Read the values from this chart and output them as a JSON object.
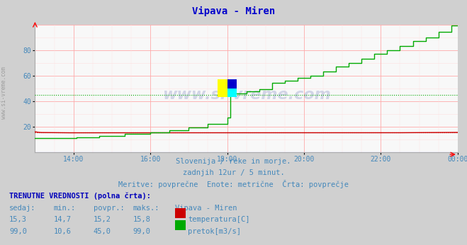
{
  "title": "Vipava - Miren",
  "title_color": "#0000cc",
  "bg_color": "#d0d0d0",
  "plot_bg_color": "#f8f8f8",
  "grid_color_major": "#ffaaaa",
  "grid_color_minor": "#ffe0e0",
  "tick_color": "#4488bb",
  "x_tick_positions": [
    12,
    36,
    60,
    84,
    108,
    132
  ],
  "x_tick_labels": [
    "14:00",
    "16:00",
    "18:00",
    "20:00",
    "22:00",
    "00:00"
  ],
  "ylim": [
    0,
    100
  ],
  "y_ticks": [
    20,
    40,
    60,
    80
  ],
  "watermark": "www.si-vreme.com",
  "subtitle1": "Slovenija / reke in morje.",
  "subtitle2": "zadnjih 12ur / 5 minut.",
  "subtitle3": "Meritve: povprečne  Enote: metrične  Črta: povprečje",
  "footer_title": "TRENUTNE VREDNOSTI (polna črta):",
  "col_headers": [
    "sedaj:",
    "min.:",
    "povpr.:",
    "maks.:",
    "Vipava - Miren"
  ],
  "temp_row": [
    "15,3",
    "14,7",
    "15,2",
    "15,8",
    "temperatura[C]"
  ],
  "flow_row": [
    "99,0",
    "10,6",
    "45,0",
    "99,0",
    "pretok[m3/s]"
  ],
  "temp_color": "#cc0000",
  "flow_color": "#00aa00",
  "avg_temp": 15.2,
  "avg_flow": 45.0,
  "n_points": 133
}
